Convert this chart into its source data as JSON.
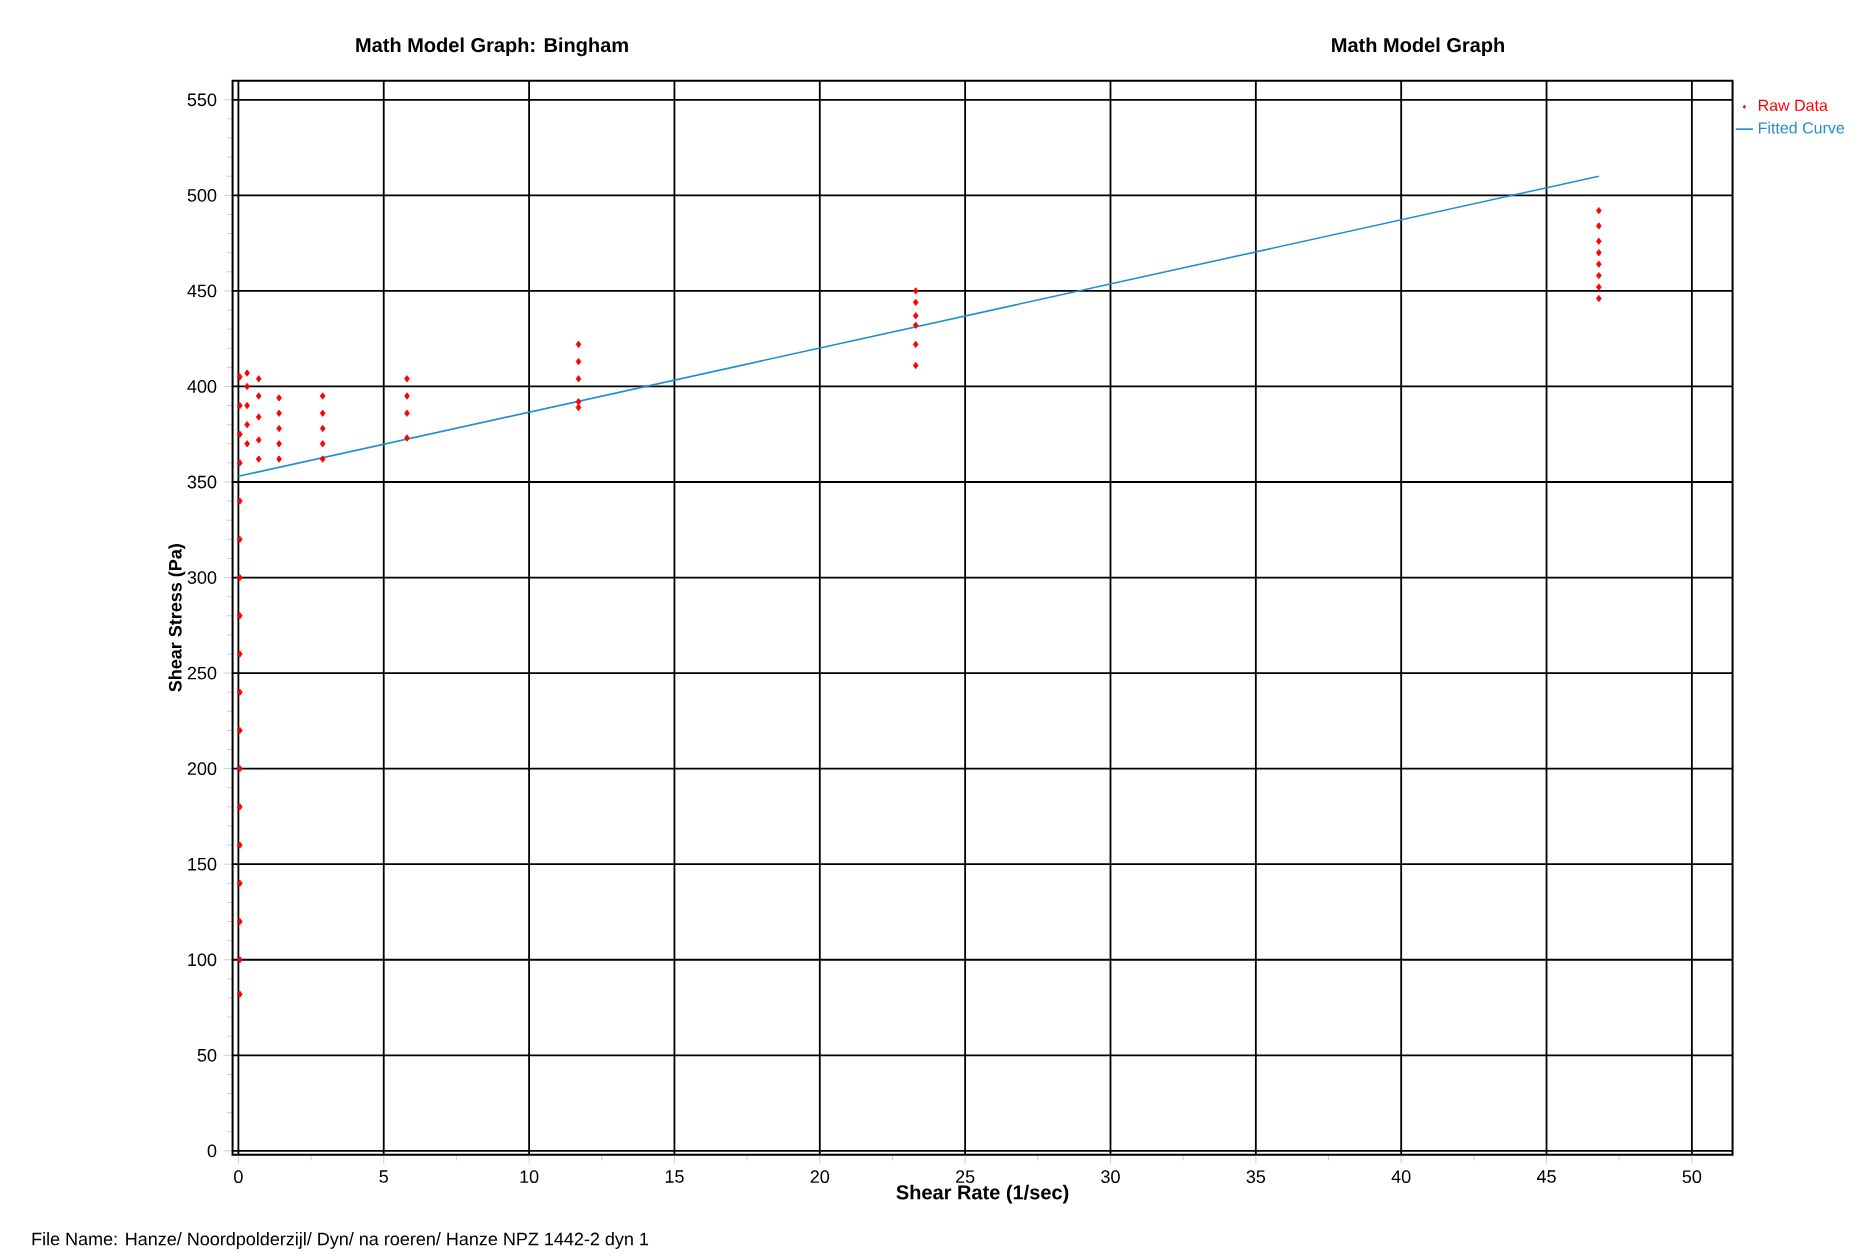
{
  "chart_data": {
    "type": "scatter",
    "title": "Math Model Graph: Bingham",
    "subtitle": "Math Model Graph",
    "xlabel": "Shear Rate (1/sec)",
    "ylabel": "Shear Stress (Pa)",
    "annotations": [
      "File Name: Hanze/ Noordpolderzijl/ Dyn/ na roeren/ Hanze  NPZ  1442-2  dyn  1"
    ],
    "xlim": [
      -0.2,
      51.4
    ],
    "ylim": [
      -2,
      560
    ],
    "xticks": [
      0,
      5,
      10,
      15,
      20,
      25,
      30,
      35,
      40,
      45,
      50
    ],
    "yticks": [
      0,
      50,
      100,
      150,
      200,
      250,
      300,
      350,
      400,
      450,
      500,
      550
    ],
    "grid": true,
    "legend": "top right",
    "series": [
      {
        "name": "Raw Data",
        "marker": "diamond",
        "color": "#ff0000",
        "x": [
          0.05,
          0.05,
          0.05,
          0.05,
          0.05,
          0.05,
          0.05,
          0.05,
          0.05,
          0.05,
          0.05,
          0.05,
          0.05,
          0.05,
          0.05,
          0.05,
          0.05,
          0.05,
          0.3,
          0.3,
          0.3,
          0.3,
          0.3,
          0.7,
          0.7,
          0.7,
          0.7,
          0.7,
          1.4,
          1.4,
          1.4,
          1.4,
          1.4,
          2.9,
          2.9,
          2.9,
          2.9,
          2.9,
          5.8,
          5.8,
          5.8,
          5.8,
          11.7,
          11.7,
          11.7,
          11.7,
          11.7,
          23.3,
          23.3,
          23.3,
          23.3,
          23.3,
          23.3,
          46.8,
          46.8,
          46.8,
          46.8,
          46.8,
          46.8,
          46.8,
          46.8
        ],
        "values": [
          82,
          100,
          120,
          140,
          160,
          180,
          200,
          220,
          240,
          260,
          280,
          300,
          320,
          340,
          360,
          375,
          390,
          405,
          370,
          380,
          390,
          400,
          407,
          362,
          372,
          384,
          395,
          404,
          362,
          370,
          378,
          386,
          394,
          362,
          370,
          378,
          386,
          395,
          373,
          386,
          395,
          404,
          389,
          392,
          404,
          413,
          422,
          411,
          422,
          432,
          437,
          444,
          450,
          446,
          452,
          458,
          464,
          470,
          476,
          484,
          492
        ]
      },
      {
        "name": "Fitted Curve",
        "type": "line",
        "marker": "none",
        "line_style": "solid",
        "color": "#1f8fd0",
        "x": [
          0,
          46.8
        ],
        "values": [
          353,
          510
        ]
      }
    ]
  }
}
